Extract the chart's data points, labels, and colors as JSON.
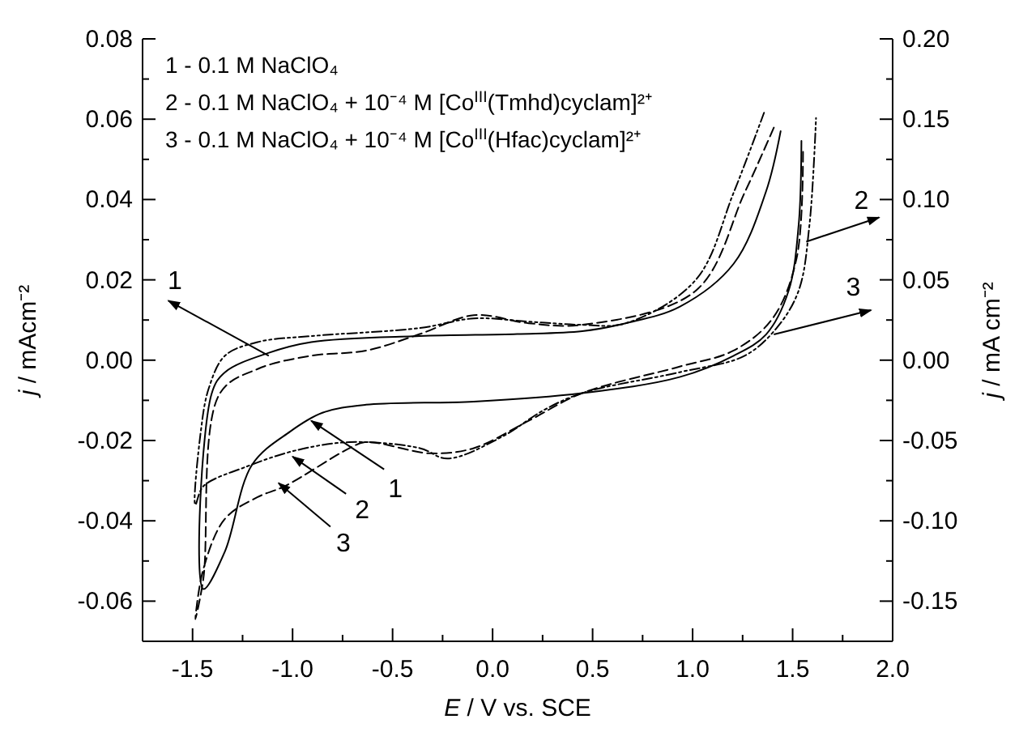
{
  "chart_data": {
    "type": "line",
    "xlabel": "E / V vs. SCE",
    "ylabel": "j / mAcm⁻²",
    "y2label": "j / mA cm⁻²",
    "xlim": [
      -1.75,
      2.0
    ],
    "xticks": [
      -1.5,
      {
        "value": -1.25,
        "label": null
      },
      {
        "value": -1,
        "label": "-1.0"
      },
      {
        "value": -0.75,
        "label": null
      },
      -0.5,
      {
        "value": -0.25,
        "label": null
      },
      {
        "value": 0,
        "label": "0.0"
      },
      {
        "value": 0.25,
        "label": null
      },
      0.5,
      {
        "value": 0.75,
        "label": null
      },
      {
        "value": 1,
        "label": "1.0"
      },
      {
        "value": 1.25,
        "label": null
      },
      1.5,
      {
        "value": 1.75,
        "label": null
      },
      {
        "value": 2,
        "label": "2.0"
      }
    ],
    "ylim": [
      -0.07,
      0.08
    ],
    "yticks": [
      -0.06,
      {
        "value": -0.05,
        "label": null
      },
      -0.04,
      {
        "value": -0.03,
        "label": null
      },
      -0.02,
      {
        "value": -0.01,
        "label": null
      },
      {
        "value": 0,
        "label": "0.00"
      },
      {
        "value": 0.01,
        "label": null
      },
      0.02,
      {
        "value": 0.03,
        "label": null
      },
      0.04,
      {
        "value": 0.05,
        "label": null
      },
      0.06,
      {
        "value": 0.07,
        "label": null
      },
      0.08
    ],
    "y2lim": [
      -0.175,
      0.2
    ],
    "y2ticks": [
      -0.15,
      {
        "value": -0.125,
        "label": null
      },
      {
        "value": -0.1,
        "label": "-0.10"
      },
      {
        "value": -0.075,
        "label": null
      },
      -0.05,
      {
        "value": -0.025,
        "label": null
      },
      {
        "value": 0,
        "label": "0.00"
      },
      {
        "value": 0.025,
        "label": null
      },
      0.05,
      {
        "value": 0.075,
        "label": null
      },
      {
        "value": 0.1,
        "label": "0.10"
      },
      {
        "value": 0.125,
        "label": null
      },
      0.15,
      {
        "value": 0.175,
        "label": null
      },
      {
        "value": 0.2,
        "label": "0.20"
      }
    ],
    "marker": "none",
    "series": [
      {
        "color": "#000000",
        "line_style": "solid",
        "x": [
          1.44,
          1.367,
          1.205,
          0.935,
          0.665,
          0.448,
          0.123,
          -0.364,
          -0.907,
          -1.121,
          -1.338,
          -1.405,
          -1.446,
          -1.338,
          -1.202,
          -1.013,
          -0.851,
          -0.634,
          -0.094,
          0.448,
          0.935,
          1.205,
          1.367,
          1.48,
          1.53,
          1.544
        ],
        "values": [
          0.057,
          0.042,
          0.024,
          0.0133,
          0.0092,
          0.0072,
          0.0065,
          0.006,
          0.0045,
          0.0018,
          -0.003,
          -0.0084,
          -0.057,
          -0.0476,
          -0.026,
          -0.0178,
          -0.0131,
          -0.0111,
          -0.0103,
          -0.0082,
          -0.0042,
          0.0011,
          0.0064,
          0.0173,
          0.0336,
          0.0546
        ]
      },
      {
        "color": "#000000",
        "line_style": "dashdot",
        "x": [
          1.357,
          1.205,
          1.016,
          0.667,
          0.448,
          0.18,
          -0.094,
          -0.364,
          -0.907,
          -1.175,
          -1.338,
          -1.419,
          -1.459,
          -1.486,
          -1.446,
          -1.23,
          -0.986,
          -0.713,
          -0.364,
          -0.226,
          0.042,
          0.261,
          0.448,
          0.935,
          1.26,
          1.42,
          1.53,
          1.584,
          1.617
        ],
        "values": [
          0.0616,
          0.0417,
          0.02,
          0.0092,
          0.0088,
          0.0096,
          0.0104,
          0.008,
          0.006,
          0.0045,
          0.0011,
          -0.007,
          -0.0178,
          -0.036,
          -0.0314,
          -0.0265,
          -0.0225,
          -0.0204,
          -0.0219,
          -0.0245,
          -0.0192,
          -0.0123,
          -0.0082,
          -0.003,
          0.0011,
          0.008,
          0.0173,
          0.0336,
          0.0603
        ]
      },
      {
        "color": "#000000",
        "line_style": "dashed",
        "x": [
          1.406,
          1.26,
          1.016,
          0.448,
          0.18,
          -0.094,
          -0.364,
          -0.632,
          -0.907,
          -1.175,
          -1.365,
          -1.446,
          -1.486,
          -1.446,
          -1.338,
          -1.175,
          -1.04,
          -0.715,
          -0.634,
          -0.31,
          -0.094,
          0.18,
          0.448,
          0.935,
          1.205,
          1.4,
          1.52,
          1.552
        ],
        "values": [
          0.0579,
          0.0417,
          0.0173,
          0.0088,
          0.0092,
          0.0112,
          0.0065,
          0.0024,
          0.0011,
          -0.0022,
          -0.0084,
          -0.0544,
          -0.0645,
          -0.052,
          -0.0395,
          -0.0341,
          -0.0314,
          -0.0219,
          -0.0204,
          -0.0232,
          -0.0219,
          -0.0151,
          -0.0082,
          -0.0016,
          0.0024,
          0.0104,
          0.0254,
          0.053
        ]
      }
    ],
    "annotations": [
      "1 - 0.1 M NaClO₄",
      "2 - 0.1 M NaClO₄ + 10⁻⁴ M [Co$^{III}$(Tmhd)cyclam]²⁺",
      "3 - 0.1 M NaClO₄ + 10⁻⁴ M [Co$^{III}$(Hfac)cyclam]²⁺",
      {
        "text": "1",
        "x": -1.119,
        "y": 0.0011
      },
      {
        "text": "1",
        "x": -0.907,
        "y": -0.0151
      },
      {
        "text": "2",
        "x": -1.0,
        "y": -0.024
      },
      {
        "text": "3",
        "x": -1.07,
        "y": -0.0306
      },
      {
        "text": "2",
        "x": 1.568,
        "y": 0.0295
      },
      {
        "text": "3",
        "x": 1.406,
        "y": 0.0064
      }
    ]
  }
}
